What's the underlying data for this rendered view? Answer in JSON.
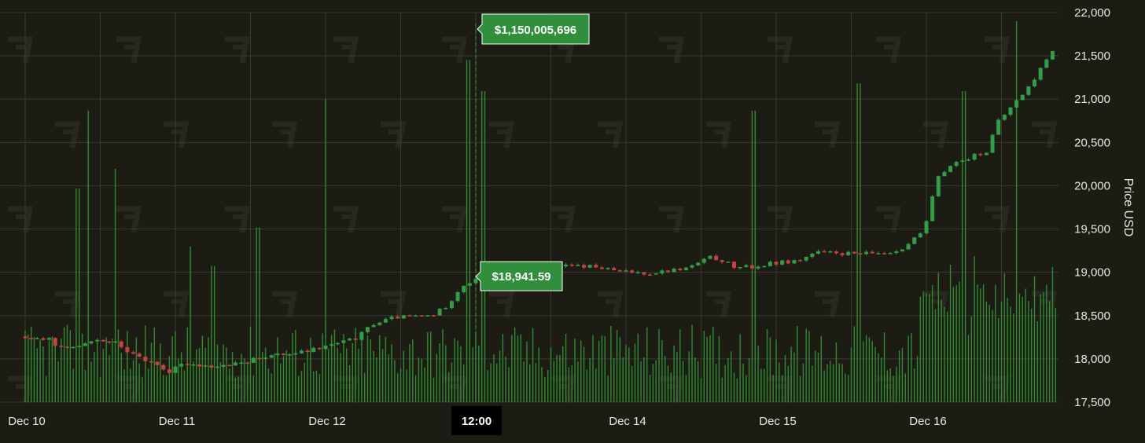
{
  "chart_data": {
    "type": "candlestick",
    "y_axis_title": "Price USD",
    "ylim": [
      17500,
      22000
    ],
    "y_ticks": [
      22000,
      21500,
      21000,
      20500,
      20000,
      19500,
      19000,
      18500,
      18000,
      17500
    ],
    "y_tick_labels": [
      "22,000",
      "21,500",
      "21,000",
      "20,500",
      "20,000",
      "19,500",
      "19,000",
      "18,500",
      "18,000",
      "17,500"
    ],
    "x_tick_labels": [
      "Dec 10",
      "Dec 11",
      "Dec 12",
      "Dec 14",
      "Dec 15",
      "Dec 16"
    ],
    "x_tick_day_positions": [
      0,
      1,
      2,
      4,
      5,
      6
    ],
    "day_range": [
      0,
      6.95
    ],
    "crosshair": {
      "time_label": "12:00",
      "day_position": 3.0,
      "price_label": "$18,941.59",
      "price": 18941.59,
      "volume_label": "$1,150,005,696"
    },
    "price_path": [
      [
        0.0,
        18260
      ],
      [
        0.2,
        18220
      ],
      [
        0.3,
        18100
      ],
      [
        0.5,
        18230
      ],
      [
        0.65,
        18180
      ],
      [
        0.75,
        18050
      ],
      [
        0.9,
        17950
      ],
      [
        1.0,
        17850
      ],
      [
        1.1,
        17950
      ],
      [
        1.3,
        17910
      ],
      [
        1.5,
        17950
      ],
      [
        1.6,
        18020
      ],
      [
        1.9,
        18080
      ],
      [
        2.1,
        18170
      ],
      [
        2.25,
        18240
      ],
      [
        2.35,
        18400
      ],
      [
        2.5,
        18480
      ],
      [
        2.75,
        18500
      ],
      [
        2.85,
        18620
      ],
      [
        2.95,
        18850
      ],
      [
        3.1,
        18950
      ],
      [
        3.3,
        19020
      ],
      [
        3.55,
        19070
      ],
      [
        3.8,
        19070
      ],
      [
        4.0,
        19010
      ],
      [
        4.2,
        18990
      ],
      [
        4.45,
        19050
      ],
      [
        4.6,
        19170
      ],
      [
        4.7,
        19130
      ],
      [
        4.75,
        19060
      ],
      [
        4.9,
        19060
      ],
      [
        5.0,
        19100
      ],
      [
        5.2,
        19140
      ],
      [
        5.3,
        19230
      ],
      [
        5.6,
        19210
      ],
      [
        5.8,
        19230
      ],
      [
        5.9,
        19300
      ],
      [
        6.0,
        19450
      ],
      [
        6.05,
        19600
      ],
      [
        6.1,
        20050
      ],
      [
        6.2,
        20250
      ],
      [
        6.3,
        20300
      ],
      [
        6.35,
        20350
      ],
      [
        6.45,
        20400
      ],
      [
        6.5,
        20700
      ],
      [
        6.55,
        20800
      ],
      [
        6.65,
        21000
      ],
      [
        6.7,
        21100
      ],
      [
        6.75,
        21200
      ],
      [
        6.85,
        21500
      ],
      [
        6.95,
        21720
      ]
    ],
    "volume_spikes": [
      [
        0.35,
        0.55
      ],
      [
        0.42,
        0.75
      ],
      [
        0.6,
        0.6
      ],
      [
        1.1,
        0.4
      ],
      [
        1.25,
        0.35
      ],
      [
        1.55,
        0.45
      ],
      [
        2.0,
        0.78
      ],
      [
        2.95,
        0.88
      ],
      [
        3.05,
        0.8
      ],
      [
        4.85,
        0.75
      ],
      [
        5.55,
        0.82
      ],
      [
        6.25,
        0.8
      ],
      [
        6.6,
        0.98
      ],
      [
        6.9,
        0.5
      ]
    ],
    "colors": {
      "up": "#2ea043",
      "down": "#c94040",
      "volume": "#2f8b2f",
      "grid": "#3a3a32",
      "tag_bg": "#2f8f3a",
      "cross_bg": "#000000"
    }
  }
}
